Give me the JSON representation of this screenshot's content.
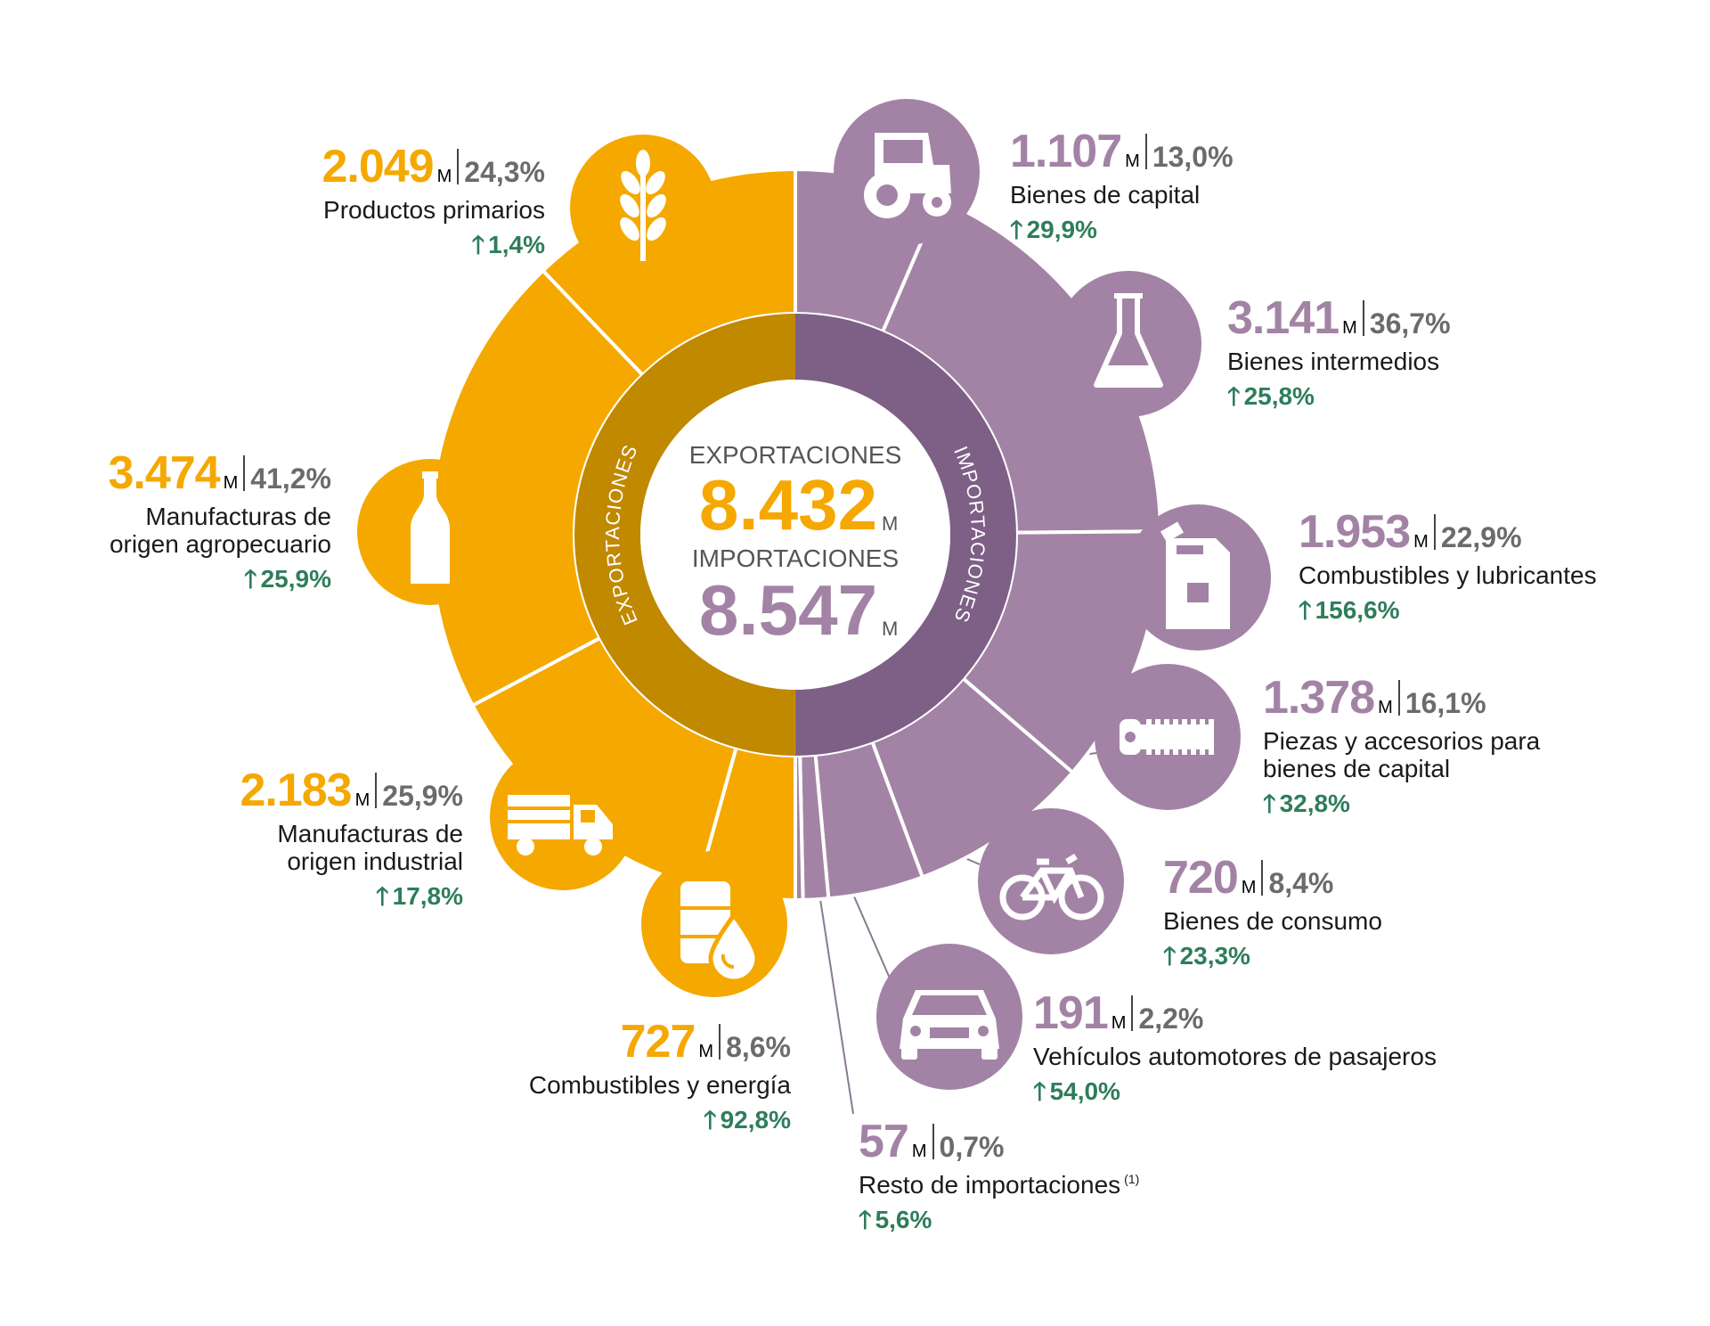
{
  "center": {
    "exports_label": "EXPORTACIONES",
    "exports_value": "8.432",
    "imports_label": "IMPORTACIONES",
    "imports_value": "8.547",
    "unit": "M",
    "ring_label_exports": "EXPORTACIONES",
    "ring_label_imports": "IMPORTACIONES"
  },
  "colors": {
    "exports": "#f5a800",
    "exports_dark": "#c08900",
    "imports": "#a383a5",
    "imports_dark": "#7e5f86",
    "growth": "#2e7d5b"
  },
  "chart_data": {
    "type": "pie",
    "title": "",
    "unit": "M",
    "totals": {
      "exportaciones": 8432,
      "importaciones": 8547
    },
    "series": [
      {
        "name": "EXPORTACIONES",
        "categories": [
          {
            "label": "Productos primarios",
            "value": 2049,
            "value_text": "2.049",
            "share": "24,3%",
            "growth": "1,4%",
            "icon": "wheat-icon"
          },
          {
            "label": "Manufacturas de origen agropecuario",
            "label_lines": [
              "Manufacturas de",
              "origen agropecuario"
            ],
            "value": 3474,
            "value_text": "3.474",
            "share": "41,2%",
            "growth": "25,9%",
            "icon": "bottle-icon"
          },
          {
            "label": "Manufacturas de origen industrial",
            "label_lines": [
              "Manufacturas de",
              "origen industrial"
            ],
            "value": 2183,
            "value_text": "2.183",
            "share": "25,9%",
            "growth": "17,8%",
            "icon": "truck-icon"
          },
          {
            "label": "Combustibles y energía",
            "value": 727,
            "value_text": "727",
            "share": "8,6%",
            "growth": "92,8%",
            "icon": "oil-barrel-icon"
          }
        ]
      },
      {
        "name": "IMPORTACIONES",
        "categories": [
          {
            "label": "Bienes de capital",
            "value": 1107,
            "value_text": "1.107",
            "share": "13,0%",
            "growth": "29,9%",
            "icon": "tractor-icon"
          },
          {
            "label": "Bienes intermedios",
            "value": 3141,
            "value_text": "3.141",
            "share": "36,7%",
            "growth": "25,8%",
            "icon": "flask-icon"
          },
          {
            "label": "Combustibles y lubricantes",
            "value": 1953,
            "value_text": "1.953",
            "share": "22,9%",
            "growth": "156,6%",
            "icon": "jerrycan-icon"
          },
          {
            "label": "Piezas y accesorios para bienes de capital",
            "label_lines": [
              "Piezas y accesorios para",
              "bienes de capital"
            ],
            "value": 1378,
            "value_text": "1.378",
            "share": "16,1%",
            "growth": "32,8%",
            "icon": "bolt-part-icon"
          },
          {
            "label": "Bienes de consumo",
            "value": 720,
            "value_text": "720",
            "share": "8,4%",
            "growth": "23,3%",
            "icon": "bicycle-icon"
          },
          {
            "label": "Vehículos automotores de pasajeros",
            "value": 191,
            "value_text": "191",
            "share": "2,2%",
            "growth": "54,0%",
            "icon": "car-icon"
          },
          {
            "label": "Resto de importaciones",
            "footnote": "(1)",
            "value": 57,
            "value_text": "57",
            "share": "0,7%",
            "growth": "5,6%",
            "icon": ""
          }
        ]
      }
    ]
  }
}
